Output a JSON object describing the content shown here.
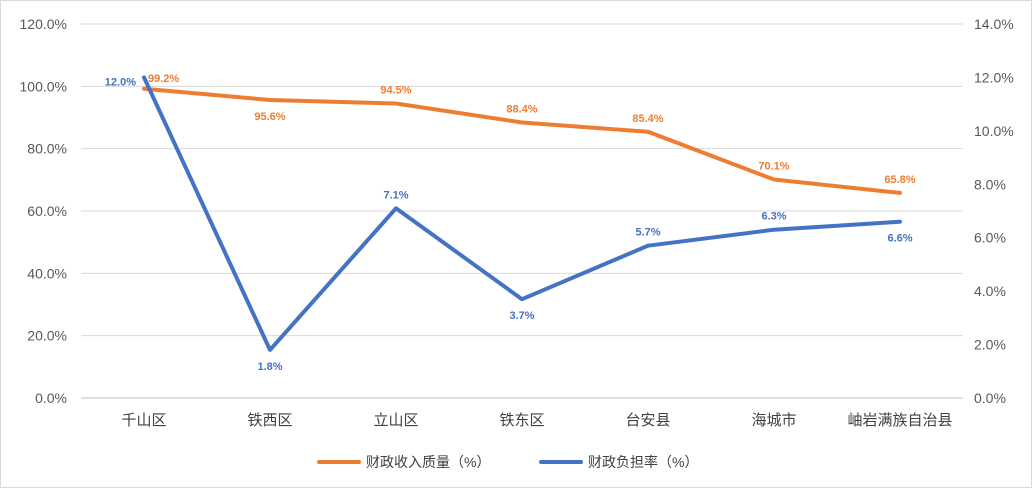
{
  "chart_data": {
    "type": "line",
    "categories": [
      "千山区",
      "铁西区",
      "立山区",
      "铁东区",
      "台安县",
      "海城市",
      "岫岩满族自治县"
    ],
    "series": [
      {
        "name": "财政收入质量（%）",
        "axis": "left",
        "color": "#ED7D31",
        "values": [
          99.2,
          95.6,
          94.5,
          88.4,
          85.4,
          70.1,
          65.8
        ],
        "labels": [
          "99.2%",
          "95.6%",
          "94.5%",
          "88.4%",
          "85.4%",
          "70.1%",
          "65.8%"
        ],
        "label_positions": [
          "right",
          "below",
          "above",
          "above",
          "above",
          "above",
          "above"
        ]
      },
      {
        "name": "财政负担率（%）",
        "axis": "right",
        "color": "#4472C4",
        "values": [
          12.0,
          1.8,
          7.1,
          3.7,
          5.7,
          6.3,
          6.6
        ],
        "labels": [
          "12.0%",
          "1.8%",
          "7.1%",
          "3.7%",
          "5.7%",
          "6.3%",
          "6.6%"
        ],
        "label_positions": [
          "left",
          "below",
          "above",
          "below",
          "above",
          "above",
          "below"
        ]
      }
    ],
    "y_left": {
      "min": 0,
      "max": 120,
      "step": 20,
      "tick_labels": [
        "0.0%",
        "20.0%",
        "40.0%",
        "60.0%",
        "80.0%",
        "100.0%",
        "120.0%"
      ]
    },
    "y_right": {
      "min": 0,
      "max": 14,
      "step": 2,
      "tick_labels": [
        "0.0%",
        "2.0%",
        "4.0%",
        "6.0%",
        "8.0%",
        "10.0%",
        "12.0%",
        "14.0%"
      ]
    },
    "grid": true,
    "grid_color": "#d9d9d9",
    "legend_position": "bottom"
  }
}
